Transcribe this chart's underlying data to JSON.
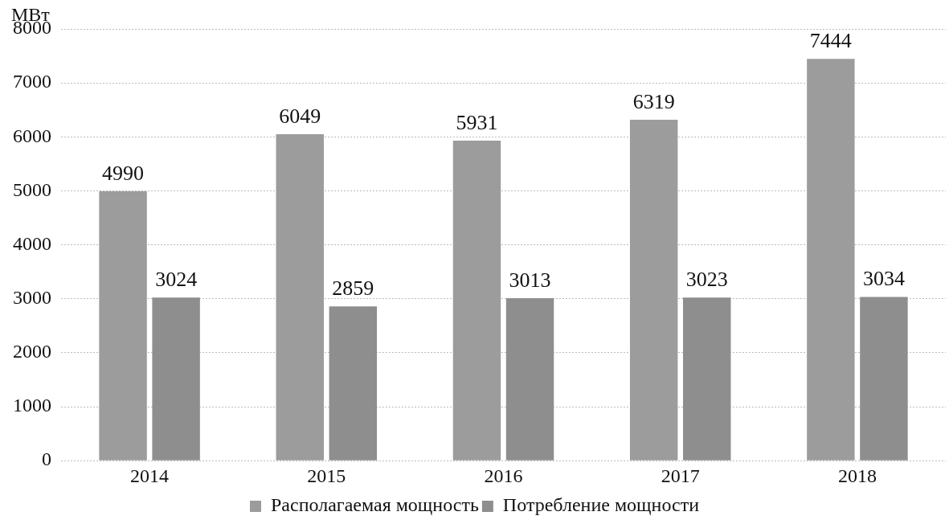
{
  "chart_data": {
    "type": "bar",
    "ylabel": "МВт",
    "categories": [
      "2014",
      "2015",
      "2016",
      "2017",
      "2018"
    ],
    "series": [
      {
        "name": "Располагаемая мощность",
        "color": "#9c9c9c",
        "values": [
          4990,
          6049,
          5931,
          6319,
          7444
        ]
      },
      {
        "name": "Потребление мощности",
        "color": "#8e8e8e",
        "values": [
          3024,
          2859,
          3013,
          3023,
          3034
        ]
      }
    ],
    "ylim": [
      0,
      8000
    ],
    "yticks": [
      0,
      1000,
      2000,
      3000,
      4000,
      5000,
      6000,
      7000,
      8000
    ],
    "grid": "y",
    "legend": "bottom",
    "data_labels": true
  }
}
